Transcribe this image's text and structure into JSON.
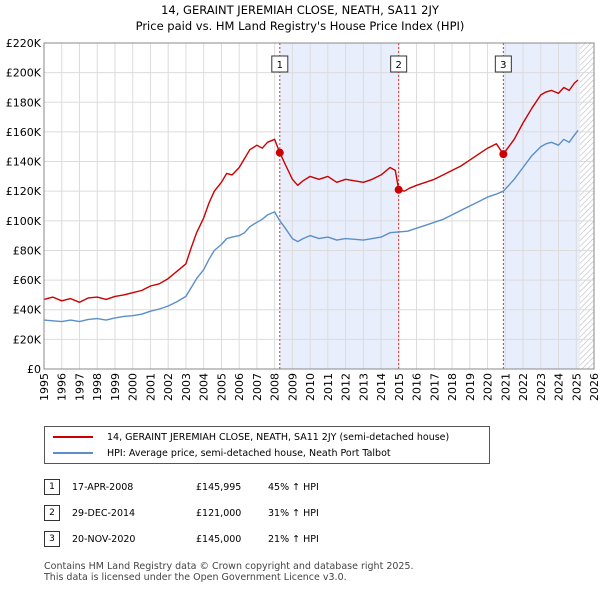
{
  "title_line1": "14, GERAINT JEREMIAH CLOSE, NEATH, SA11 2JY",
  "title_line2": "Price paid vs. HM Land Registry's House Price Index (HPI)",
  "chart_data": {
    "type": "line",
    "title": "14, GERAINT JEREMIAH CLOSE, NEATH, SA11 2JY — Price paid vs. HM Land Registry's House Price Index (HPI)",
    "xlim": [
      1995,
      2026
    ],
    "ylim": [
      0,
      220000
    ],
    "x_ticks": [
      "1995",
      "1996",
      "1997",
      "1998",
      "1999",
      "2000",
      "2001",
      "2002",
      "2003",
      "2004",
      "2005",
      "2006",
      "2007",
      "2008",
      "2009",
      "2010",
      "2011",
      "2012",
      "2013",
      "2014",
      "2015",
      "2016",
      "2017",
      "2018",
      "2019",
      "2020",
      "2021",
      "2022",
      "2023",
      "2024",
      "2025",
      "2026"
    ],
    "y_ticks": [
      {
        "value": 0,
        "label": "£0"
      },
      {
        "value": 20000,
        "label": "£20K"
      },
      {
        "value": 40000,
        "label": "£40K"
      },
      {
        "value": 60000,
        "label": "£60K"
      },
      {
        "value": 80000,
        "label": "£80K"
      },
      {
        "value": 100000,
        "label": "£100K"
      },
      {
        "value": 120000,
        "label": "£120K"
      },
      {
        "value": 140000,
        "label": "£140K"
      },
      {
        "value": 160000,
        "label": "£160K"
      },
      {
        "value": 180000,
        "label": "£180K"
      },
      {
        "value": 200000,
        "label": "£200K"
      },
      {
        "value": 220000,
        "label": "£220K"
      }
    ],
    "grid": true,
    "shaded_ranges": [
      [
        2008.29,
        2014.99
      ],
      [
        2020.89,
        2025.2
      ]
    ],
    "hatched_from": 2025.2,
    "series": [
      {
        "name": "14, GERAINT JEREMIAH CLOSE, NEATH, SA11 2JY (semi-detached house)",
        "color": "#cc0000",
        "points": [
          [
            1995,
            47000
          ],
          [
            1995.5,
            48500
          ],
          [
            1996,
            46000
          ],
          [
            1996.5,
            47500
          ],
          [
            1997,
            45000
          ],
          [
            1997.5,
            48000
          ],
          [
            1998,
            48500
          ],
          [
            1998.5,
            47000
          ],
          [
            1999,
            49000
          ],
          [
            1999.5,
            50000
          ],
          [
            2000,
            51500
          ],
          [
            2000.5,
            53000
          ],
          [
            2001,
            56000
          ],
          [
            2001.5,
            57500
          ],
          [
            2002,
            61000
          ],
          [
            2002.5,
            66000
          ],
          [
            2003,
            71000
          ],
          [
            2003.3,
            82000
          ],
          [
            2003.6,
            92000
          ],
          [
            2004,
            102000
          ],
          [
            2004.3,
            112000
          ],
          [
            2004.6,
            120000
          ],
          [
            2005,
            126000
          ],
          [
            2005.3,
            132000
          ],
          [
            2005.6,
            131000
          ],
          [
            2006,
            136000
          ],
          [
            2006.3,
            142000
          ],
          [
            2006.6,
            148000
          ],
          [
            2007,
            151000
          ],
          [
            2007.3,
            149000
          ],
          [
            2007.6,
            153000
          ],
          [
            2008,
            155000
          ],
          [
            2008.29,
            145995
          ],
          [
            2008.6,
            138000
          ],
          [
            2009,
            128000
          ],
          [
            2009.3,
            124000
          ],
          [
            2009.6,
            127000
          ],
          [
            2010,
            130000
          ],
          [
            2010.5,
            128000
          ],
          [
            2011,
            130000
          ],
          [
            2011.5,
            126000
          ],
          [
            2012,
            128000
          ],
          [
            2012.5,
            127000
          ],
          [
            2013,
            126000
          ],
          [
            2013.5,
            128000
          ],
          [
            2014,
            131000
          ],
          [
            2014.5,
            136000
          ],
          [
            2014.8,
            134000
          ],
          [
            2014.99,
            121000
          ],
          [
            2015.3,
            120000
          ],
          [
            2015.6,
            122000
          ],
          [
            2016,
            124000
          ],
          [
            2016.5,
            126000
          ],
          [
            2017,
            128000
          ],
          [
            2017.5,
            131000
          ],
          [
            2018,
            134000
          ],
          [
            2018.5,
            137000
          ],
          [
            2019,
            141000
          ],
          [
            2019.5,
            145000
          ],
          [
            2020,
            149000
          ],
          [
            2020.5,
            152000
          ],
          [
            2020.89,
            145000
          ],
          [
            2021.2,
            150000
          ],
          [
            2021.5,
            155000
          ],
          [
            2022,
            166000
          ],
          [
            2022.5,
            176000
          ],
          [
            2023,
            185000
          ],
          [
            2023.3,
            187000
          ],
          [
            2023.6,
            188000
          ],
          [
            2024,
            186000
          ],
          [
            2024.3,
            190000
          ],
          [
            2024.6,
            188000
          ],
          [
            2024.9,
            193000
          ],
          [
            2025.1,
            195000
          ]
        ]
      },
      {
        "name": "HPI: Average price, semi-detached house, Neath Port Talbot",
        "color": "#5b8fc9",
        "points": [
          [
            1995,
            33000
          ],
          [
            1995.5,
            32500
          ],
          [
            1996,
            32000
          ],
          [
            1996.5,
            33000
          ],
          [
            1997,
            32000
          ],
          [
            1997.5,
            33500
          ],
          [
            1998,
            34000
          ],
          [
            1998.5,
            33000
          ],
          [
            1999,
            34500
          ],
          [
            1999.5,
            35500
          ],
          [
            2000,
            36000
          ],
          [
            2000.5,
            37000
          ],
          [
            2001,
            39000
          ],
          [
            2001.5,
            40500
          ],
          [
            2002,
            42500
          ],
          [
            2002.5,
            45500
          ],
          [
            2003,
            49000
          ],
          [
            2003.3,
            55000
          ],
          [
            2003.6,
            61000
          ],
          [
            2004,
            67000
          ],
          [
            2004.3,
            74000
          ],
          [
            2004.6,
            80000
          ],
          [
            2005,
            84000
          ],
          [
            2005.3,
            88000
          ],
          [
            2005.6,
            89000
          ],
          [
            2006,
            90000
          ],
          [
            2006.3,
            92000
          ],
          [
            2006.6,
            96000
          ],
          [
            2007,
            99000
          ],
          [
            2007.3,
            101000
          ],
          [
            2007.6,
            104000
          ],
          [
            2008,
            106000
          ],
          [
            2008.29,
            100000
          ],
          [
            2008.6,
            95000
          ],
          [
            2009,
            88000
          ],
          [
            2009.3,
            86000
          ],
          [
            2009.6,
            88000
          ],
          [
            2010,
            90000
          ],
          [
            2010.5,
            88000
          ],
          [
            2011,
            89000
          ],
          [
            2011.5,
            87000
          ],
          [
            2012,
            88000
          ],
          [
            2012.5,
            87500
          ],
          [
            2013,
            87000
          ],
          [
            2013.5,
            88000
          ],
          [
            2014,
            89000
          ],
          [
            2014.5,
            92000
          ],
          [
            2014.99,
            92500
          ],
          [
            2015.5,
            93000
          ],
          [
            2016,
            95000
          ],
          [
            2016.5,
            97000
          ],
          [
            2017,
            99000
          ],
          [
            2017.5,
            101000
          ],
          [
            2018,
            104000
          ],
          [
            2018.5,
            107000
          ],
          [
            2019,
            110000
          ],
          [
            2019.5,
            113000
          ],
          [
            2020,
            116000
          ],
          [
            2020.5,
            118000
          ],
          [
            2020.89,
            120000
          ],
          [
            2021.2,
            124000
          ],
          [
            2021.5,
            128000
          ],
          [
            2022,
            136000
          ],
          [
            2022.5,
            144000
          ],
          [
            2023,
            150000
          ],
          [
            2023.3,
            152000
          ],
          [
            2023.6,
            153000
          ],
          [
            2024,
            151000
          ],
          [
            2024.3,
            155000
          ],
          [
            2024.6,
            153000
          ],
          [
            2024.9,
            158000
          ],
          [
            2025.1,
            161000
          ]
        ]
      }
    ],
    "markers": [
      {
        "label": "1",
        "x": 2008.29,
        "y": 145995
      },
      {
        "label": "2",
        "x": 2014.99,
        "y": 121000
      },
      {
        "label": "3",
        "x": 2020.89,
        "y": 145000
      }
    ]
  },
  "legend": {
    "items": [
      {
        "label": "14, GERAINT JEREMIAH CLOSE, NEATH, SA11 2JY (semi-detached house)",
        "color": "#cc0000"
      },
      {
        "label": "HPI: Average price, semi-detached house, Neath Port Talbot",
        "color": "#5b8fc9"
      }
    ]
  },
  "sales": [
    {
      "num": "1",
      "date": "17-APR-2008",
      "price": "£145,995",
      "hpi": "45% ↑ HPI"
    },
    {
      "num": "2",
      "date": "29-DEC-2014",
      "price": "£121,000",
      "hpi": "31% ↑ HPI"
    },
    {
      "num": "3",
      "date": "20-NOV-2020",
      "price": "£145,000",
      "hpi": "21% ↑ HPI"
    }
  ],
  "footer_line1": "Contains HM Land Registry data © Crown copyright and database right 2025.",
  "footer_line2": "This data is licensed under the Open Government Licence v3.0."
}
